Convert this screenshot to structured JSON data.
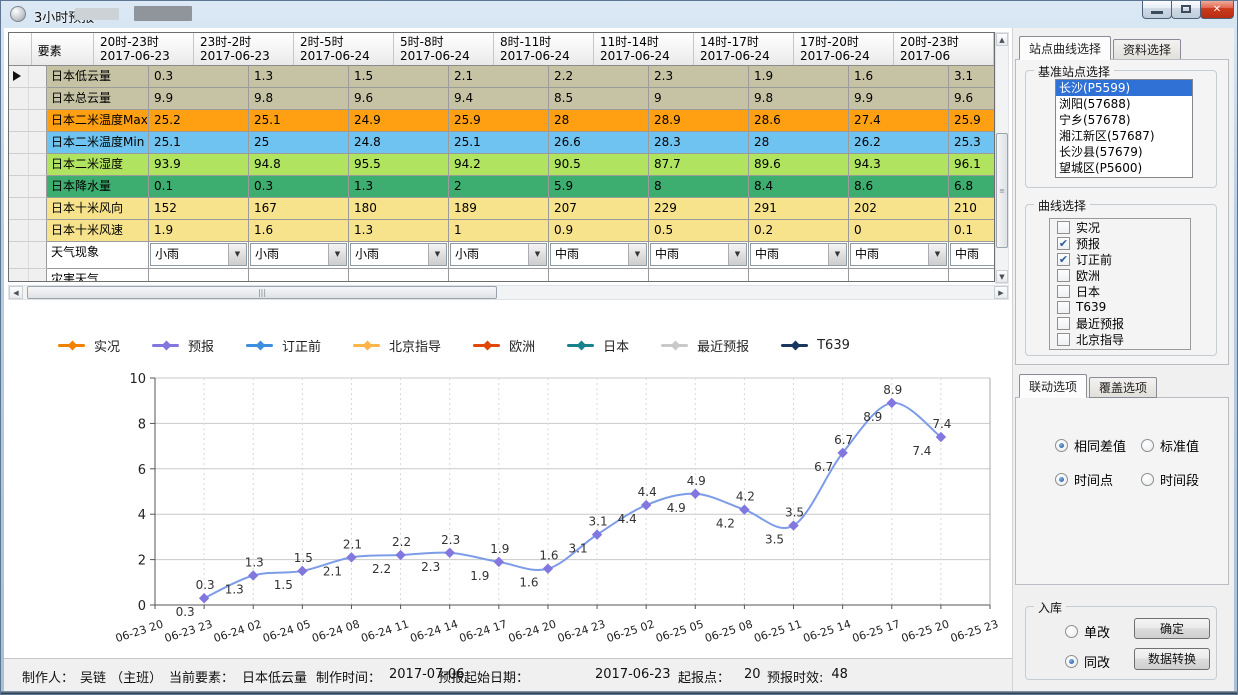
{
  "window": {
    "title": "3小时预报"
  },
  "table": {
    "element_header": "要素",
    "columns": [
      {
        "period": "20时-23时",
        "date": "2017-06-23"
      },
      {
        "period": "23时-2时",
        "date": "2017-06-23"
      },
      {
        "period": "2时-5时",
        "date": "2017-06-24"
      },
      {
        "period": "5时-8时",
        "date": "2017-06-24"
      },
      {
        "period": "8时-11时",
        "date": "2017-06-24"
      },
      {
        "period": "11时-14时",
        "date": "2017-06-24"
      },
      {
        "period": "14时-17时",
        "date": "2017-06-24"
      },
      {
        "period": "17时-20时",
        "date": "2017-06-24"
      },
      {
        "period": "20时-23时",
        "date": "2017-06"
      }
    ],
    "rows": [
      {
        "name": "日本低云量",
        "color": "#c6c3a4",
        "selected": true,
        "values": [
          "0.3",
          "1.3",
          "1.5",
          "2.1",
          "2.2",
          "2.3",
          "1.9",
          "1.6",
          "3.1"
        ]
      },
      {
        "name": "日本总云量",
        "color": "#c6c3a4",
        "values": [
          "9.9",
          "9.8",
          "9.6",
          "9.4",
          "8.5",
          "9",
          "9.8",
          "9.9",
          "9.6"
        ]
      },
      {
        "name": "日本二米温度Max",
        "color": "#ffa013",
        "values": [
          "25.2",
          "25.1",
          "24.9",
          "25.9",
          "28",
          "28.9",
          "28.6",
          "27.4",
          "25.9"
        ]
      },
      {
        "name": "日本二米温度Min",
        "color": "#6fc3f0",
        "values": [
          "25.1",
          "25",
          "24.8",
          "25.1",
          "26.6",
          "28.3",
          "28",
          "26.2",
          "25.3"
        ]
      },
      {
        "name": "日本二米湿度",
        "color": "#b0e35f",
        "values": [
          "93.9",
          "94.8",
          "95.5",
          "94.2",
          "90.5",
          "87.7",
          "89.6",
          "94.3",
          "96.1"
        ]
      },
      {
        "name": "日本降水量",
        "color": "#3dae6f",
        "values": [
          "0.1",
          "0.3",
          "1.3",
          "2",
          "5.9",
          "8",
          "8.4",
          "8.6",
          "6.8"
        ]
      },
      {
        "name": "日本十米风向",
        "color": "#f8e38d",
        "values": [
          "152",
          "167",
          "180",
          "189",
          "207",
          "229",
          "291",
          "202",
          "210"
        ]
      },
      {
        "name": "日本十米风速",
        "color": "#f8e38d",
        "values": [
          "1.9",
          "1.6",
          "1.3",
          "1",
          "0.9",
          "0.5",
          "0.2",
          "0",
          "0.1"
        ]
      },
      {
        "name": "天气现象",
        "type": "dropdown",
        "color": "#ffffff",
        "values": [
          "小雨",
          "小雨",
          "小雨",
          "小雨",
          "中雨",
          "中雨",
          "中雨",
          "中雨",
          "中雨"
        ]
      },
      {
        "name": "灾害天气",
        "type": "plain",
        "color": "#ffffff",
        "values": [
          "",
          "",
          "",
          "",
          "",
          "",
          "",
          "",
          ""
        ]
      }
    ]
  },
  "legend": [
    {
      "label": "实况",
      "color": "#f08200"
    },
    {
      "label": "预报",
      "color": "#8277df"
    },
    {
      "label": "订正前",
      "color": "#3e8ede"
    },
    {
      "label": "北京指导",
      "color": "#ffb547"
    },
    {
      "label": "欧洲",
      "color": "#e2470a"
    },
    {
      "label": "日本",
      "color": "#17818c"
    },
    {
      "label": "最近预报",
      "color": "#c9c9c9"
    },
    {
      "label": "T639",
      "color": "#17375e"
    }
  ],
  "chart_data": {
    "type": "line",
    "x_labels": [
      "06-23 20",
      "06-23 23",
      "06-24 02",
      "06-24 05",
      "06-24 08",
      "06-24 11",
      "06-24 14",
      "06-24 17",
      "06-24 20",
      "06-24 23",
      "06-25 02",
      "06-25 05",
      "06-25 08",
      "06-25 11",
      "06-25 14",
      "06-25 17",
      "06-25 20",
      "06-25 23"
    ],
    "series": [
      {
        "name": "预报",
        "start_index": 1,
        "values": [
          0.3,
          1.3,
          1.5,
          2.1,
          2.2,
          2.3,
          1.9,
          1.6,
          3.1,
          4.4,
          4.9,
          4.2,
          3.5,
          6.7,
          8.9,
          7.4
        ]
      },
      {
        "name": "订正前",
        "start_index": 1,
        "values": [
          0.3,
          1.3,
          1.5,
          2.1,
          2.2,
          2.3,
          1.9,
          1.6,
          3.1,
          4.4,
          4.9,
          4.2,
          3.5,
          6.7,
          8.9,
          7.4
        ]
      }
    ],
    "ylim": [
      0,
      10
    ],
    "yticks": [
      0,
      2,
      4,
      6,
      8,
      10
    ],
    "grid": true,
    "legend_position": "top",
    "line_color": "#7d9ce8",
    "marker_color": "#8277df"
  },
  "sidebar": {
    "tabs_top": [
      {
        "label": "站点曲线选择",
        "active": true
      },
      {
        "label": "资料选择",
        "active": false
      }
    ],
    "station_group": "基准站点选择",
    "stations": [
      {
        "label": "长沙(P5599)",
        "selected": true
      },
      {
        "label": "浏阳(57688)",
        "selected": false
      },
      {
        "label": "宁乡(57678)",
        "selected": false
      },
      {
        "label": "湘江新区(57687)",
        "selected": false
      },
      {
        "label": "长沙县(57679)",
        "selected": false
      },
      {
        "label": "望城区(P5600)",
        "selected": false
      }
    ],
    "curve_group": "曲线选择",
    "curves": [
      {
        "label": "实况",
        "checked": false
      },
      {
        "label": "预报",
        "checked": true
      },
      {
        "label": "订正前",
        "checked": true
      },
      {
        "label": "欧洲",
        "checked": false
      },
      {
        "label": "日本",
        "checked": false
      },
      {
        "label": "T639",
        "checked": false
      },
      {
        "label": "最近预报",
        "checked": false
      },
      {
        "label": "北京指导",
        "checked": false
      }
    ],
    "tabs_mid": [
      {
        "label": "联动选项",
        "active": true
      },
      {
        "label": "覆盖选项",
        "active": false
      }
    ],
    "link_radios": [
      [
        {
          "label": "相同差值",
          "selected": true
        },
        {
          "label": "标准值",
          "selected": false
        }
      ],
      [
        {
          "label": "时间点",
          "selected": true
        },
        {
          "label": "时间段",
          "selected": false
        }
      ]
    ],
    "store_group": "入库",
    "store_radios": [
      {
        "label": "单改",
        "selected": false
      },
      {
        "label": "同改",
        "selected": true
      }
    ],
    "buttons": [
      {
        "label": "确定"
      },
      {
        "label": "数据转换"
      }
    ]
  },
  "statusbar": {
    "items": [
      {
        "label": "制作人：",
        "value": "吴链 （主班）"
      },
      {
        "label": "当前要素：",
        "value": "日本低云量"
      },
      {
        "label": "制作时间：",
        "value": "2017-07-06"
      },
      {
        "label": "预报起始日期：",
        "value": "2017-06-23"
      },
      {
        "label": "起报点：",
        "value": "20"
      },
      {
        "label": "预报时效:",
        "value": "48"
      }
    ]
  },
  "scrollbars": {
    "up": "▲",
    "down": "▼",
    "left": "◀",
    "right": "▶",
    "vgrip": "≡",
    "hgrip": "|||"
  },
  "combo_arrow": "▼"
}
